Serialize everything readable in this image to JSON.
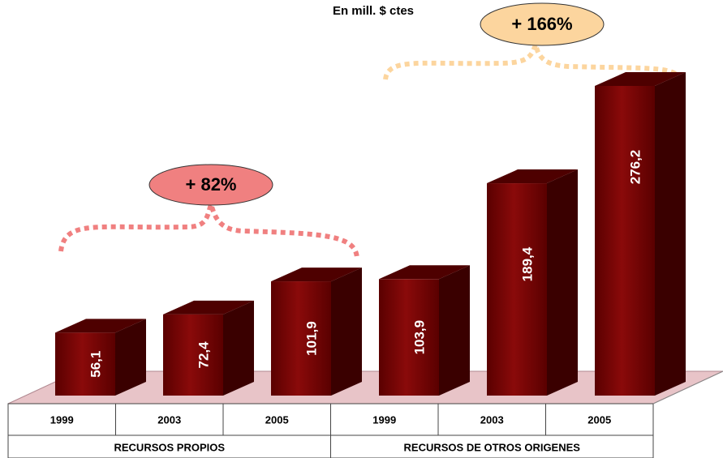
{
  "chart_data": {
    "type": "bar3d",
    "title": "En mill. $ ctes",
    "categories": [
      "1999",
      "2003",
      "2005",
      "1999",
      "2003",
      "2005"
    ],
    "groups": [
      "RECURSOS PROPIOS",
      "RECURSOS DE OTROS ORIGENES"
    ],
    "values": [
      56.1,
      72.4,
      101.9,
      103.9,
      189.4,
      276.2
    ],
    "value_labels": [
      "56,1",
      "72,4",
      "101,9",
      "103,9",
      "189,4",
      "276,2"
    ],
    "color": "#800000",
    "annotations": [
      {
        "text": "+ 82%",
        "color": "#f08080"
      },
      {
        "text": "+ 166%",
        "color": "#fcd59e"
      }
    ]
  }
}
